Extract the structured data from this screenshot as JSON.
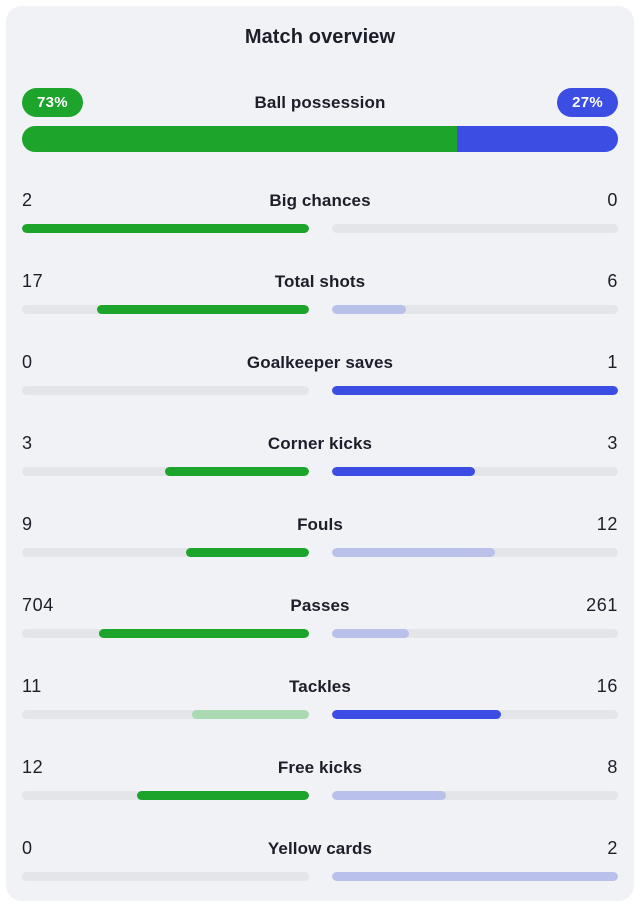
{
  "title": "Match overview",
  "colors": {
    "card_bg": "#F1F2F6",
    "page_bg": "#FFFFFF",
    "text": "#1C1F2A",
    "home_strong": "#1DA42A",
    "home_faded": "#ABD9B1",
    "away_strong": "#3C4DE3",
    "away_faded": "#B9C1EB",
    "track": "#E4E5E9",
    "pill_text": "#FFFFFF"
  },
  "possession": {
    "label": "Ball possession",
    "home_value": "73%",
    "away_value": "27%",
    "home_pct": 73,
    "away_pct": 27
  },
  "stats": [
    {
      "label": "Big chances",
      "home": "2",
      "away": "0",
      "home_pct": 100,
      "away_pct": 0,
      "home_variant": "strong",
      "away_variant": "none"
    },
    {
      "label": "Total shots",
      "home": "17",
      "away": "6",
      "home_pct": 73.9,
      "away_pct": 26.1,
      "home_variant": "strong",
      "away_variant": "faded"
    },
    {
      "label": "Goalkeeper saves",
      "home": "0",
      "away": "1",
      "home_pct": 0,
      "away_pct": 100,
      "home_variant": "none",
      "away_variant": "strong"
    },
    {
      "label": "Corner kicks",
      "home": "3",
      "away": "3",
      "home_pct": 50,
      "away_pct": 50,
      "home_variant": "strong",
      "away_variant": "strong"
    },
    {
      "label": "Fouls",
      "home": "9",
      "away": "12",
      "home_pct": 42.9,
      "away_pct": 57.1,
      "home_variant": "strong",
      "away_variant": "faded"
    },
    {
      "label": "Passes",
      "home": "704",
      "away": "261",
      "home_pct": 73,
      "away_pct": 27,
      "home_variant": "strong",
      "away_variant": "faded"
    },
    {
      "label": "Tackles",
      "home": "11",
      "away": "16",
      "home_pct": 40.7,
      "away_pct": 59.3,
      "home_variant": "faded",
      "away_variant": "strong"
    },
    {
      "label": "Free kicks",
      "home": "12",
      "away": "8",
      "home_pct": 60,
      "away_pct": 40,
      "home_variant": "strong",
      "away_variant": "faded"
    },
    {
      "label": "Yellow cards",
      "home": "0",
      "away": "2",
      "home_pct": 0,
      "away_pct": 100,
      "home_variant": "none",
      "away_variant": "faded"
    }
  ],
  "chart_data": {
    "type": "bar",
    "title": "Match overview",
    "layout": "mirrored paired horizontal bars; each side's fill length = value / (home+away) of that row; winner shown in strong color, loser in faded color, zero shown as empty track",
    "categories": [
      "Ball possession",
      "Big chances",
      "Total shots",
      "Goalkeeper saves",
      "Corner kicks",
      "Fouls",
      "Passes",
      "Tackles",
      "Free kicks",
      "Yellow cards"
    ],
    "series": [
      {
        "name": "home",
        "color": "#1DA42A",
        "values": [
          73,
          2,
          17,
          0,
          3,
          9,
          704,
          11,
          12,
          0
        ]
      },
      {
        "name": "away",
        "color": "#3C4DE3",
        "values": [
          27,
          0,
          6,
          1,
          3,
          12,
          261,
          16,
          8,
          2
        ]
      }
    ],
    "value_units": {
      "Ball possession": "percent",
      "others": "count"
    }
  }
}
